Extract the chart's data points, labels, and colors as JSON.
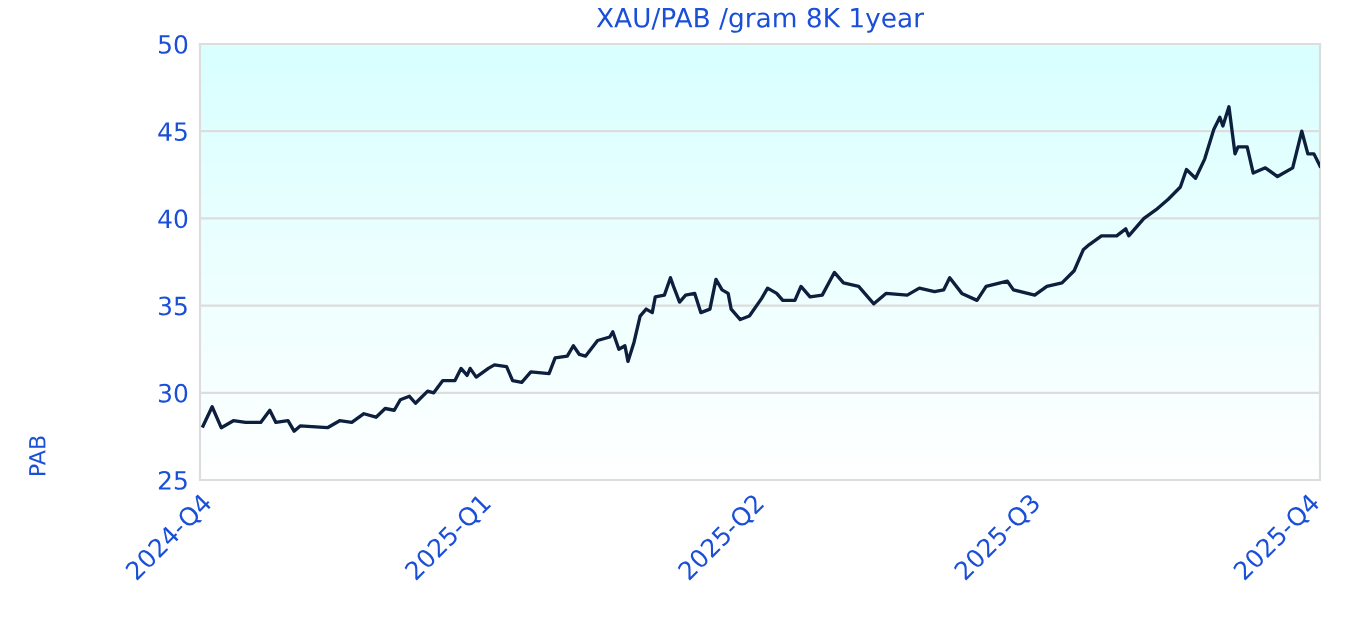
{
  "chart_data": {
    "type": "line",
    "title": "XAU/PAB /gram 8K 1year",
    "ylabel": "PAB",
    "xlim": [
      "2024-10-01",
      "2025-10-05"
    ],
    "xticks": [
      {
        "value": "2024-10-01",
        "label": "2024-Q4"
      },
      {
        "value": "2025-01-01",
        "label": "2025-Q1"
      },
      {
        "value": "2025-04-01",
        "label": "2025-Q2"
      },
      {
        "value": "2025-07-01",
        "label": "2025-Q3"
      },
      {
        "value": "2025-10-01",
        "label": "2025-Q4"
      }
    ],
    "ylim": [
      25,
      50
    ],
    "yticks": [
      25,
      30,
      35,
      40,
      45,
      50
    ],
    "grid": "y",
    "marker": "none",
    "line_style": "solid",
    "series": [
      {
        "color": "#0d1f3c",
        "x": [
          "2024-10-02",
          "2024-10-05",
          "2024-10-08",
          "2024-10-12",
          "2024-10-16",
          "2024-10-21",
          "2024-10-24",
          "2024-10-26",
          "2024-10-30",
          "2024-11-01",
          "2024-11-03",
          "2024-11-12",
          "2024-11-16",
          "2024-11-20",
          "2024-11-24",
          "2024-11-28",
          "2024-12-01",
          "2024-12-04",
          "2024-12-06",
          "2024-12-09",
          "2024-12-11",
          "2024-12-15",
          "2024-12-17",
          "2024-12-20",
          "2024-12-24",
          "2024-12-26",
          "2024-12-28",
          "2024-12-29",
          "2024-12-31",
          "2025-01-04",
          "2025-01-06",
          "2025-01-10",
          "2025-01-12",
          "2025-01-15",
          "2025-01-18",
          "2025-01-24",
          "2025-01-26",
          "2025-01-30",
          "2025-02-01",
          "2025-02-03",
          "2025-02-05",
          "2025-02-09",
          "2025-02-13",
          "2025-02-14",
          "2025-02-16",
          "2025-02-18",
          "2025-02-19",
          "2025-02-21",
          "2025-02-23",
          "2025-02-25",
          "2025-02-27",
          "2025-02-28",
          "2025-03-03",
          "2025-03-05",
          "2025-03-06",
          "2025-03-08",
          "2025-03-10",
          "2025-03-13",
          "2025-03-15",
          "2025-03-18",
          "2025-03-20",
          "2025-03-22",
          "2025-03-24",
          "2025-03-25",
          "2025-03-28",
          "2025-03-31",
          "2025-04-04",
          "2025-04-06",
          "2025-04-09",
          "2025-04-11",
          "2025-04-15",
          "2025-04-17",
          "2025-04-20",
          "2025-04-24",
          "2025-04-28",
          "2025-05-01",
          "2025-05-06",
          "2025-05-09",
          "2025-05-11",
          "2025-05-15",
          "2025-05-22",
          "2025-05-26",
          "2025-05-31",
          "2025-06-03",
          "2025-06-05",
          "2025-06-09",
          "2025-06-14",
          "2025-06-17",
          "2025-06-24",
          "2025-06-26",
          "2025-07-03",
          "2025-07-07",
          "2025-07-12",
          "2025-07-16",
          "2025-07-19",
          "2025-07-21",
          "2025-07-25",
          "2025-07-30",
          "2025-08-02",
          "2025-08-03",
          "2025-08-08",
          "2025-08-12",
          "2025-08-16",
          "2025-08-20",
          "2025-08-22",
          "2025-08-25",
          "2025-08-28",
          "2025-08-31",
          "2025-09-02",
          "2025-09-03",
          "2025-09-05",
          "2025-09-07",
          "2025-09-08",
          "2025-09-11",
          "2025-09-13",
          "2025-09-17",
          "2025-09-21",
          "2025-09-26",
          "2025-09-29",
          "2025-10-01",
          "2025-10-03",
          "2025-10-05"
        ],
        "values": [
          28.1,
          29.2,
          28.0,
          28.4,
          28.3,
          28.3,
          29.0,
          28.3,
          28.4,
          27.8,
          28.1,
          28.0,
          28.4,
          28.3,
          28.8,
          28.6,
          29.1,
          29.0,
          29.6,
          29.8,
          29.4,
          30.1,
          30.0,
          30.7,
          30.7,
          31.4,
          31.0,
          31.4,
          30.9,
          31.4,
          31.6,
          31.5,
          30.7,
          30.6,
          31.2,
          31.1,
          32.0,
          32.1,
          32.7,
          32.2,
          32.1,
          33.0,
          33.2,
          33.5,
          32.5,
          32.7,
          31.8,
          32.9,
          34.4,
          34.8,
          34.6,
          35.5,
          35.6,
          36.6,
          36.1,
          35.2,
          35.6,
          35.7,
          34.6,
          34.8,
          36.5,
          35.9,
          35.7,
          34.8,
          34.2,
          34.4,
          35.4,
          36.0,
          35.7,
          35.3,
          35.3,
          36.1,
          35.5,
          35.6,
          36.9,
          36.3,
          36.1,
          35.5,
          35.1,
          35.7,
          35.6,
          36.0,
          35.8,
          35.9,
          36.6,
          35.7,
          35.3,
          36.1,
          36.4,
          35.9,
          35.6,
          36.1,
          36.3,
          37.0,
          38.2,
          38.5,
          39.0,
          39.0,
          39.4,
          39.0,
          40.0,
          40.5,
          41.1,
          41.8,
          42.8,
          42.3,
          43.4,
          45.1,
          45.8,
          45.3,
          46.4,
          43.7,
          44.1,
          44.1,
          42.6,
          42.9,
          42.4,
          42.9,
          45.0,
          43.7,
          43.7,
          43.0
        ]
      }
    ]
  }
}
